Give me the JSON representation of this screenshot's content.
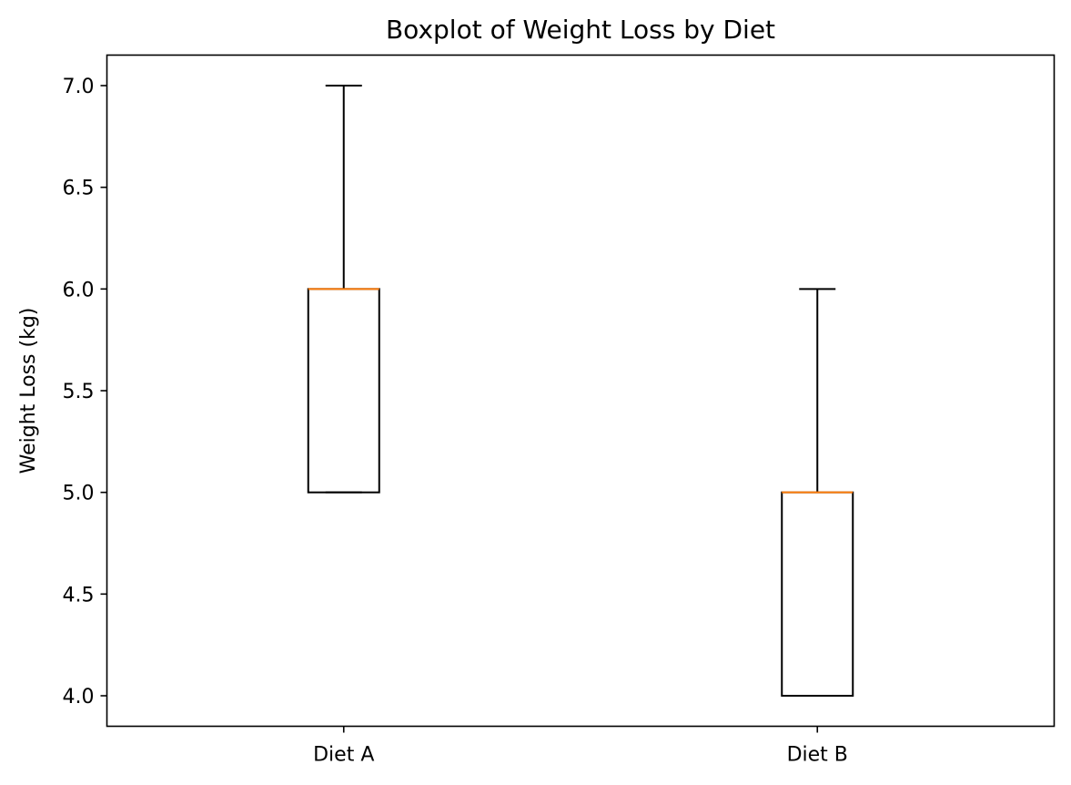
{
  "chart_data": {
    "type": "boxplot",
    "title": "Boxplot of Weight Loss by Diet",
    "xlabel": "",
    "ylabel": "Weight Loss (kg)",
    "ylim": [
      3.85,
      7.15
    ],
    "yticks": [
      4.0,
      4.5,
      5.0,
      5.5,
      6.0,
      6.5,
      7.0
    ],
    "ytick_labels": [
      "4.0",
      "4.5",
      "5.0",
      "5.5",
      "6.0",
      "6.5",
      "7.0"
    ],
    "categories": [
      "Diet A",
      "Diet B"
    ],
    "boxes": [
      {
        "name": "Diet A",
        "min": 5.0,
        "q1": 5.0,
        "median": 6.0,
        "q3": 6.0,
        "max": 7.0
      },
      {
        "name": "Diet B",
        "min": 4.0,
        "q1": 4.0,
        "median": 5.0,
        "q3": 5.0,
        "max": 6.0
      }
    ],
    "grid": false,
    "colors": {
      "box": "#000000",
      "median": "#ff7f0e",
      "background": "#ffffff"
    }
  }
}
